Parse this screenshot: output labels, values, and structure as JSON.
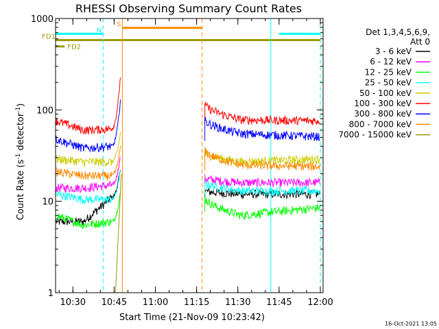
{
  "chart_data": {
    "type": "line",
    "title": "RHESSI Observing Summary Count Rates",
    "xlabel": "Start Time (21-Nov-09 10:23:42)",
    "ylabel_main": "Count Rate (s",
    "ylabel_sup1": "-1",
    "ylabel_mid": " detector",
    "ylabel_sup2": "-1",
    "ylabel_end": ")",
    "y_scale": "log",
    "ylim": [
      1,
      1000
    ],
    "xlim_minutes": [
      "10:23:42",
      "12:01:00"
    ],
    "x_ticks": [
      {
        "t": "10:30",
        "label": "10:30"
      },
      {
        "t": "10:45",
        "label": "10:45"
      },
      {
        "t": "11:00",
        "label": "11:00"
      },
      {
        "t": "11:15",
        "label": "11:15"
      },
      {
        "t": "11:30",
        "label": "11:30"
      },
      {
        "t": "11:45",
        "label": "11:45"
      },
      {
        "t": "12:00",
        "label": "12:00"
      }
    ],
    "y_ticks": [
      {
        "v": 1,
        "label": "1"
      },
      {
        "v": 10,
        "label": "10"
      },
      {
        "v": 100,
        "label": "100"
      },
      {
        "v": 1000,
        "label": "1000"
      }
    ],
    "legend": {
      "placement": "right",
      "header": [
        "Det 1,3,4,5,6,9,",
        "Att 0"
      ]
    },
    "series": [
      {
        "name": "3 - 6 keV",
        "color": "#000000",
        "pre": [
          6,
          6,
          11
        ],
        "post": [
          13,
          12,
          12
        ]
      },
      {
        "name": "6 - 12 keV",
        "color": "#ff00ff",
        "pre": [
          14,
          14,
          15
        ],
        "post": [
          18,
          16,
          16
        ]
      },
      {
        "name": "12 - 25 keV",
        "color": "#00ff00",
        "pre": [
          7,
          5.5,
          6
        ],
        "post": [
          11,
          7,
          8.5
        ]
      },
      {
        "name": "25 - 50 keV",
        "color": "#00ffff",
        "pre": [
          12,
          10.5,
          10.5
        ],
        "post": [
          16,
          13,
          13
        ]
      },
      {
        "name": "50 - 100 keV",
        "color": "#cccc00",
        "pre": [
          29,
          27,
          27
        ],
        "post": [
          34,
          27,
          29
        ]
      },
      {
        "name": "100 - 300 keV",
        "color": "#ff0000",
        "pre": [
          76,
          60,
          62
        ],
        "post": [
          115,
          78,
          76
        ]
      },
      {
        "name": "300 - 800 keV",
        "color": "#0000ff",
        "pre": [
          48,
          38,
          40
        ],
        "post": [
          78,
          55,
          51
        ]
      },
      {
        "name": "800 - 7000 keV",
        "color": "#ff8800",
        "pre": [
          21,
          19,
          19
        ],
        "post": [
          36,
          25,
          24
        ]
      },
      {
        "name": "7000 - 15000 keV",
        "color": "#999900",
        "pre": [
          1,
          1,
          1
        ],
        "post": [
          1,
          1,
          1
        ]
      }
    ],
    "segments": [
      {
        "label": "N",
        "color": "#00ffff",
        "from": "10:23:42",
        "to": "10:41:00",
        "level": 680,
        "style": "solid"
      },
      {
        "label": "",
        "color": "#00ffff",
        "from": "11:45:00",
        "to": "12:00:00",
        "level": 680,
        "style": "solid"
      },
      {
        "label": "S",
        "color": "#ff8800",
        "from": "10:48:00",
        "to": "11:17:00",
        "level": 790,
        "style": "solid"
      },
      {
        "label": "FD1",
        "color": "#999900",
        "from": "10:23:42",
        "to": "12:00:00",
        "level": 580,
        "style": "solid"
      },
      {
        "label": "FD2",
        "color": "#999900",
        "from": "10:23:42",
        "to": "10:27:00",
        "level": 495,
        "style": "solid"
      }
    ],
    "vlines": [
      {
        "t": "10:41:00",
        "color": "#00ffff",
        "style": "dashed"
      },
      {
        "t": "10:48:00",
        "color": "#ff8800",
        "style": "solid"
      },
      {
        "t": "11:17:00",
        "color": "#ff8800",
        "style": "dashed"
      },
      {
        "t": "11:42:00",
        "color": "#00ffff",
        "style": "solid"
      },
      {
        "t": "12:00:00",
        "color": "#00ffff",
        "style": "dashed"
      }
    ],
    "flare_peak": {
      "t": "10:47:00",
      "value": 255
    }
  },
  "footer": {
    "timestamp": "16-Oct-2021 13:05"
  }
}
